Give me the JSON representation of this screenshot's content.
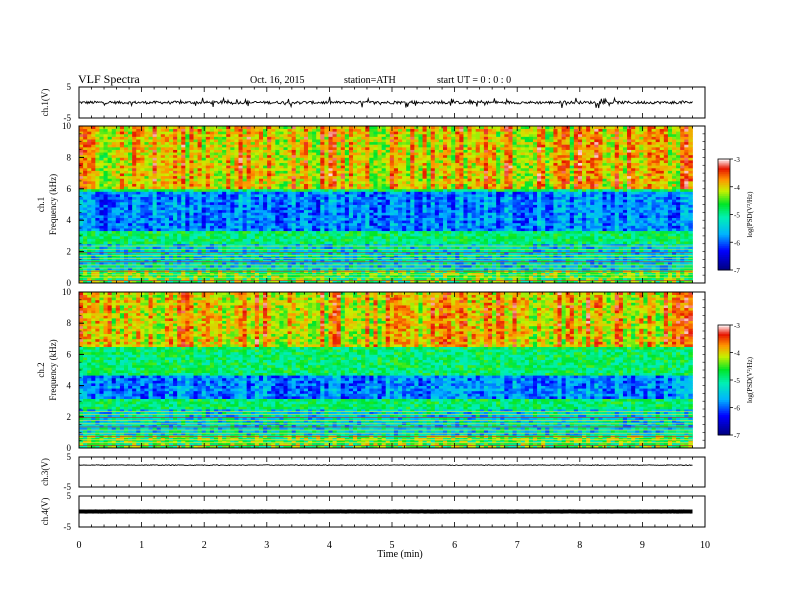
{
  "header": {
    "title": "VLF  Spectra",
    "date": "Oct. 16, 2015",
    "station": "station=ATH",
    "start": "start  UT  =   0  :  0  :  0"
  },
  "chart_data": [
    {
      "type": "line",
      "ylabel": "ch.1(V)",
      "ylim": [
        -5,
        5
      ],
      "yticks": [
        "5",
        "-5"
      ],
      "baseline": 0,
      "noise": "bursty"
    },
    {
      "type": "heatmap",
      "ylabel_channel": "ch.1",
      "ylabel": "Frequency  (kHz)",
      "ylim": [
        0,
        10
      ],
      "yticks": [
        "0",
        "2",
        "4",
        "6",
        "8",
        "10"
      ],
      "colorbar": {
        "label": "log(PSD(V²/Hz)",
        "range": [
          -7,
          -3
        ],
        "ticks": [
          "-3",
          "-4",
          "-5",
          "-6",
          "-7"
        ]
      },
      "bands_kHz": {
        "quiet_low": [
          3.3,
          5.8
        ],
        "intense_high": [
          6,
          10
        ],
        "lines_below": 2.5
      }
    },
    {
      "type": "heatmap",
      "ylabel_channel": "ch.2",
      "ylabel": "Frequency  (kHz)",
      "ylim": [
        0,
        10
      ],
      "yticks": [
        "0",
        "2",
        "4",
        "6",
        "8",
        "10"
      ],
      "colorbar": {
        "label": "log(PSD(V²/Hz)",
        "range": [
          -7,
          -3
        ],
        "ticks": [
          "-3",
          "-4",
          "-5",
          "-6",
          "-7"
        ]
      },
      "bands_kHz": {
        "quiet_low": [
          3.2,
          4.6
        ],
        "intense_high": [
          6.5,
          10
        ],
        "lines_below": 2.5
      }
    },
    {
      "type": "line",
      "ylabel": "ch.3(V)",
      "ylim": [
        -5,
        5
      ],
      "yticks": [
        "5",
        "-5"
      ],
      "baseline": 2.3,
      "noise": "small"
    },
    {
      "type": "line",
      "ylabel": "ch.4(V)",
      "ylim": [
        -5,
        5
      ],
      "yticks": [
        "5",
        "-5"
      ],
      "baseline": 0,
      "noise": "flat"
    }
  ],
  "xaxis": {
    "label": "Time  (min)",
    "range": [
      0,
      10
    ],
    "data_end": 9.8,
    "ticks": [
      "0",
      "1",
      "2",
      "3",
      "4",
      "5",
      "6",
      "7",
      "8",
      "9",
      "10"
    ]
  }
}
